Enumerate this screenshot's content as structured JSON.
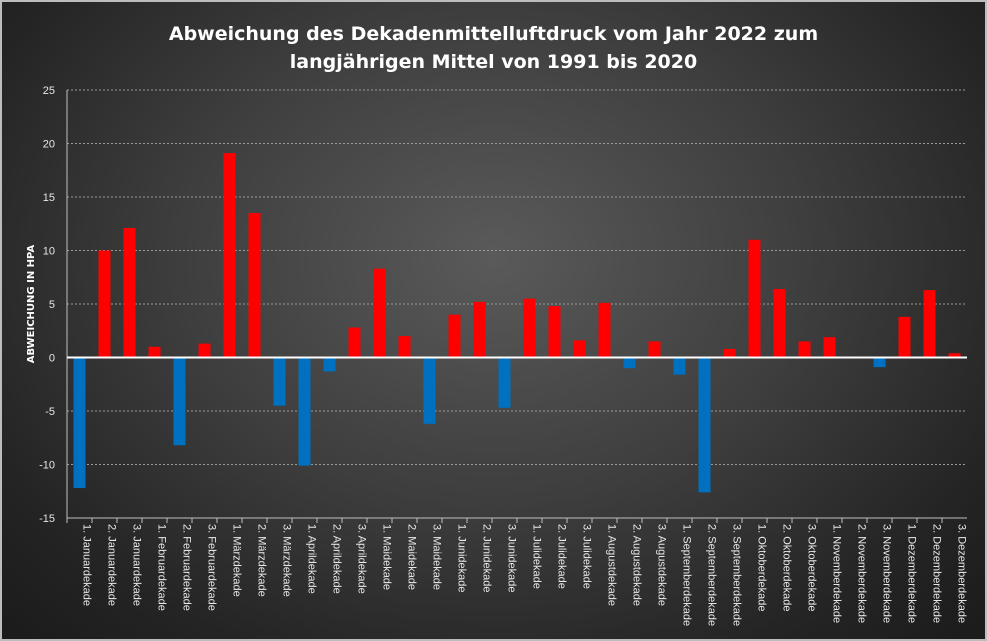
{
  "chart_data": {
    "type": "bar",
    "title": "Abweichung des Dekadenmittelluftdruck vom Jahr 2022 zum\nlangjährigen Mittel von 1991 bis 2020",
    "ylabel": "ABWEICHUNG IN HPA",
    "xlabel": "",
    "ylim": [
      -15,
      25
    ],
    "yticks": [
      -15,
      -10,
      -5,
      0,
      5,
      10,
      15,
      20,
      25
    ],
    "grid": true,
    "positive_color": "#ff0000",
    "negative_color": "#0070c0",
    "categories": [
      "1. Januardekade",
      "2. Januardekade",
      "3. Januardekade",
      "1. Februardekade",
      "2. Februardekade",
      "3. Februardekade",
      "1. Märzdekade",
      "2. Märzdekade",
      "3. Märzdekade",
      "1. Aprildekade",
      "2. Aprildekade",
      "3. Aprildekade",
      "1. Maidekade",
      "2. Maidekade",
      "3. Maidekade",
      "1. Junidekade",
      "2. Junidekade",
      "3. Junidekade",
      "1. Julidekade",
      "2. Julidekade",
      "3. Julidekade",
      "1. Augustdekade",
      "2. Augustdekade",
      "3. Augustdekade",
      "1. Septemberdekade",
      "2. Septemberdekade",
      "3. Septemberdekade",
      "1. Oktoberdekade",
      "2. Oktoberdekade",
      "3. Oktoberdekade",
      "1. Novemberdekade",
      "2. Novemberdekade",
      "3. Novemberdekade",
      "1. Dezemberdekade",
      "2. Dezemberdekade",
      "3. Dezemberdekade"
    ],
    "values": [
      -12.2,
      10.0,
      12.1,
      1.0,
      -8.2,
      1.3,
      19.1,
      13.5,
      -4.5,
      -10.1,
      -1.3,
      2.8,
      8.3,
      2.0,
      -6.2,
      4.0,
      5.2,
      -4.7,
      5.5,
      4.8,
      1.6,
      5.1,
      -1.0,
      1.5,
      -1.6,
      -12.6,
      0.8,
      11.0,
      6.4,
      1.5,
      1.9,
      0.0,
      -0.9,
      3.8,
      6.3,
      0.4
    ]
  }
}
